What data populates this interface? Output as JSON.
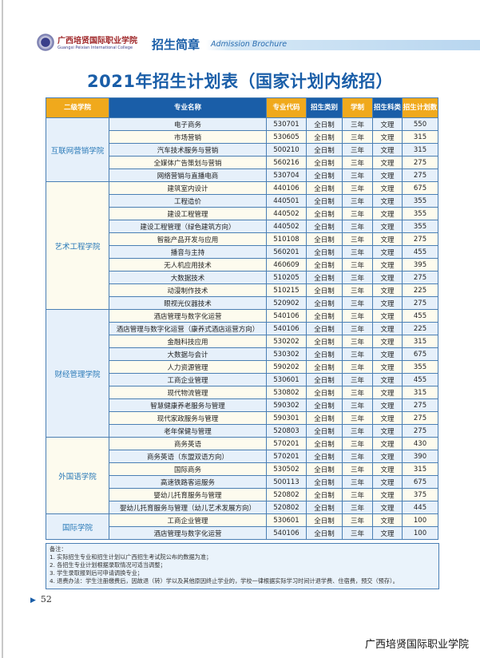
{
  "header": {
    "school_logo_text": "广西培贤国际职业学院",
    "school_logo_en": "Guangxi Peixian International College",
    "brochure_cn": "招生简章",
    "brochure_en": "Admission Brochure"
  },
  "title": "2021年招生计划表（国家计划内统招）",
  "columns": [
    "二级学院",
    "专业名称",
    "专业代码",
    "招生类别",
    "学制",
    "招生科类",
    "招生计划数"
  ],
  "groups": [
    {
      "college": "互联网营销学院",
      "rows": [
        [
          "电子商务",
          "530701",
          "全日制",
          "三年",
          "文理",
          "550"
        ],
        [
          "市场营销",
          "530605",
          "全日制",
          "三年",
          "文理",
          "315"
        ],
        [
          "汽车技术服务与营销",
          "500210",
          "全日制",
          "三年",
          "文理",
          "315"
        ],
        [
          "全媒体广告策划与营销",
          "560216",
          "全日制",
          "三年",
          "文理",
          "275"
        ],
        [
          "网络营销与直播电商",
          "530704",
          "全日制",
          "三年",
          "文理",
          "275"
        ]
      ]
    },
    {
      "college": "艺术工程学院",
      "rows": [
        [
          "建筑室内设计",
          "440106",
          "全日制",
          "三年",
          "文理",
          "675"
        ],
        [
          "工程造价",
          "440501",
          "全日制",
          "三年",
          "文理",
          "355"
        ],
        [
          "建设工程管理",
          "440502",
          "全日制",
          "三年",
          "文理",
          "355"
        ],
        [
          "建设工程管理（绿色建筑方向）",
          "440502",
          "全日制",
          "三年",
          "文理",
          "355"
        ],
        [
          "智能产品开发与应用",
          "510108",
          "全日制",
          "三年",
          "文理",
          "275"
        ],
        [
          "播音与主持",
          "560201",
          "全日制",
          "三年",
          "文理",
          "455"
        ],
        [
          "无人机应用技术",
          "460609",
          "全日制",
          "三年",
          "文理",
          "395"
        ],
        [
          "大数据技术",
          "510205",
          "全日制",
          "三年",
          "文理",
          "275"
        ],
        [
          "动漫制作技术",
          "510215",
          "全日制",
          "三年",
          "文理",
          "225"
        ],
        [
          "眼视光仪器技术",
          "520902",
          "全日制",
          "三年",
          "文理",
          "275"
        ]
      ]
    },
    {
      "college": "财经管理学院",
      "rows": [
        [
          "酒店管理与数字化运营",
          "540106",
          "全日制",
          "三年",
          "文理",
          "455"
        ],
        [
          "酒店管理与数字化运营（康养式酒店运营方向）",
          "540106",
          "全日制",
          "三年",
          "文理",
          "225"
        ],
        [
          "金融科技应用",
          "530202",
          "全日制",
          "三年",
          "文理",
          "315"
        ],
        [
          "大数据与会计",
          "530302",
          "全日制",
          "三年",
          "文理",
          "675"
        ],
        [
          "人力资源管理",
          "590202",
          "全日制",
          "三年",
          "文理",
          "355"
        ],
        [
          "工商企业管理",
          "530601",
          "全日制",
          "三年",
          "文理",
          "455"
        ],
        [
          "现代物流管理",
          "530802",
          "全日制",
          "三年",
          "文理",
          "315"
        ],
        [
          "智慧健康养老服务与管理",
          "590302",
          "全日制",
          "三年",
          "文理",
          "275"
        ],
        [
          "现代家政服务与管理",
          "590301",
          "全日制",
          "三年",
          "文理",
          "275"
        ],
        [
          "老年保健与管理",
          "520803",
          "全日制",
          "三年",
          "文理",
          "275"
        ]
      ]
    },
    {
      "college": "外国语学院",
      "rows": [
        [
          "商务英语",
          "570201",
          "全日制",
          "三年",
          "文理",
          "430"
        ],
        [
          "商务英语（东盟双语方向）",
          "570201",
          "全日制",
          "三年",
          "文理",
          "390"
        ],
        [
          "国际商务",
          "530502",
          "全日制",
          "三年",
          "文理",
          "315"
        ],
        [
          "高速铁路客运服务",
          "500113",
          "全日制",
          "三年",
          "文理",
          "675"
        ],
        [
          "婴幼儿托育服务与管理",
          "520802",
          "全日制",
          "三年",
          "文理",
          "375"
        ],
        [
          "婴幼儿托育服务与管理（幼儿艺术发展方向）",
          "520802",
          "全日制",
          "三年",
          "文理",
          "445"
        ]
      ]
    },
    {
      "college": "国际学院",
      "rows": [
        [
          "工商企业管理",
          "530601",
          "全日制",
          "三年",
          "文理",
          "100"
        ],
        [
          "酒店管理与数字化运营",
          "540106",
          "全日制",
          "三年",
          "文理",
          "100"
        ]
      ]
    }
  ],
  "notes": {
    "heading": "备注：",
    "items": [
      "1. 实际招生专业和招生计划以广西招生考试院公布的数据为准；",
      "2. 各招生专业计划根据录取情况可适当调整；",
      "3. 学生录取报到后可申请调换专业；",
      "4. 退费办法：学生注册缴费后，因故退（转）学以及其他原因终止学业的，学校一律根据实际学习时间计退学费、住宿费，预交（预存）。"
    ]
  },
  "page_number": "52",
  "footer": "广西培贤国际职业学院",
  "colors": {
    "blue": "#1a5ea8",
    "orange": "#f0a91c",
    "row_blue": "#e6f0fa",
    "row_cream": "#fdfbee"
  }
}
